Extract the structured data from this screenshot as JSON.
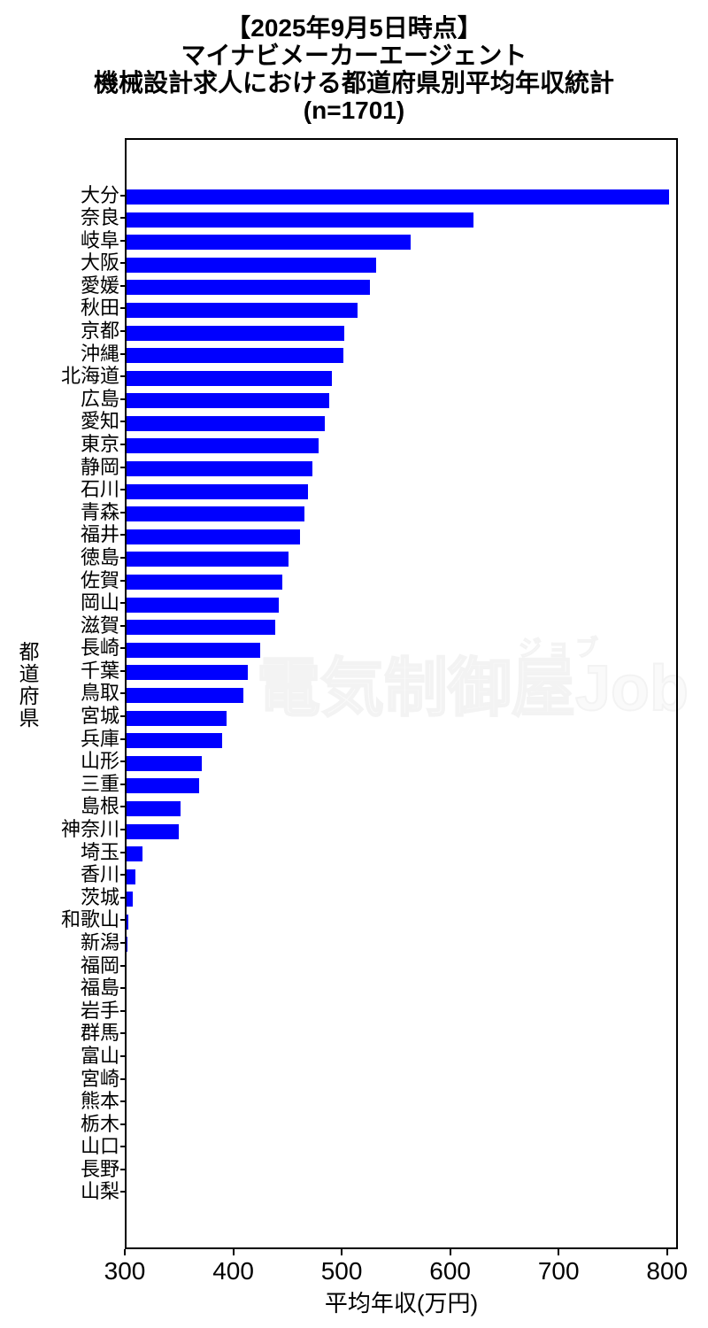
{
  "title": {
    "line1": "【2025年9月5日時点】",
    "line2": "マイナビメーカーエージェント",
    "line3": "機械設計求人における都道府県別平均年収統計",
    "line4": "(n=1701)"
  },
  "watermark": {
    "text": "電気制御屋Job",
    "ruby": "ジョブ"
  },
  "chart_data": {
    "type": "bar",
    "orientation": "horizontal",
    "title": "【2025年9月5日時点】 マイナビメーカーエージェント 機械設計求人における都道府県別平均年収統計 (n=1701)",
    "xlabel": "平均年収(万円)",
    "ylabel": "都道府県",
    "xlim": [
      300,
      810
    ],
    "xticks": [
      300,
      400,
      500,
      600,
      700,
      800
    ],
    "grid": false,
    "legend": null,
    "bar_color": "#0000ff",
    "categories": [
      "大分",
      "奈良",
      "岐阜",
      "大阪",
      "愛媛",
      "秋田",
      "京都",
      "沖縄",
      "北海道",
      "広島",
      "愛知",
      "東京",
      "静岡",
      "石川",
      "青森",
      "福井",
      "徳島",
      "佐賀",
      "岡山",
      "滋賀",
      "長崎",
      "千葉",
      "鳥取",
      "宮城",
      "兵庫",
      "山形",
      "三重",
      "島根",
      "神奈川",
      "埼玉",
      "香川",
      "茨城",
      "和歌山",
      "新潟",
      "福岡",
      "福島",
      "岩手",
      "群馬",
      "富山",
      "宮崎",
      "熊本",
      "栃木",
      "山口",
      "長野",
      "山梨"
    ],
    "values": [
      800,
      620,
      562,
      530,
      524,
      513,
      501,
      500,
      489,
      487,
      483,
      477,
      471,
      467,
      464,
      460,
      449,
      444,
      440,
      437,
      423,
      412,
      408,
      392,
      388,
      369,
      367,
      350,
      348,
      315,
      308,
      306,
      302,
      301,
      300,
      300,
      300,
      300,
      300,
      300,
      300,
      300,
      300,
      300,
      300
    ]
  }
}
